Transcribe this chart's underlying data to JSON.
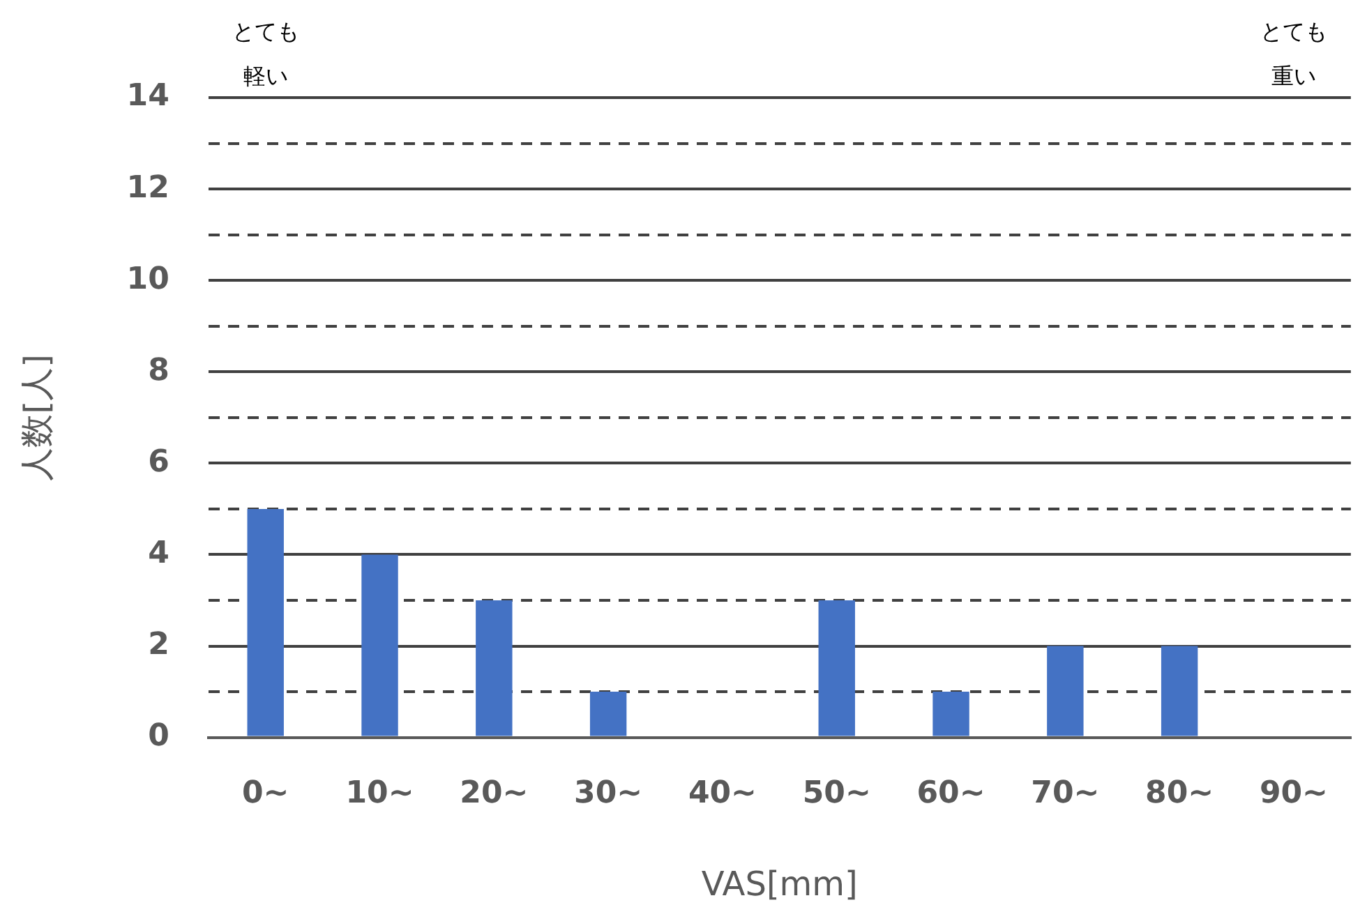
{
  "chart_data": {
    "type": "bar",
    "xlabel": "VAS[mm]",
    "ylabel": "人数[人]",
    "categories": [
      "0~",
      "10~",
      "20~",
      "30~",
      "40~",
      "50~",
      "60~",
      "70~",
      "80~",
      "90~"
    ],
    "values": [
      5,
      4,
      3,
      1,
      0,
      3,
      1,
      2,
      2,
      0
    ],
    "color": "#4472c4",
    "ylim": [
      0,
      14
    ],
    "yticks": [
      0,
      {
        "value": 1,
        "label": null
      },
      2,
      {
        "value": 3,
        "label": null
      },
      4,
      {
        "value": 5,
        "label": null
      },
      6,
      {
        "value": 7,
        "label": null
      },
      8,
      {
        "value": 9,
        "label": null
      },
      10,
      {
        "value": 11,
        "label": null
      },
      12,
      {
        "value": 13,
        "label": null
      },
      14
    ],
    "grid": "y",
    "legend": false,
    "annotations": [
      "とても軽い",
      "とても重い"
    ]
  }
}
